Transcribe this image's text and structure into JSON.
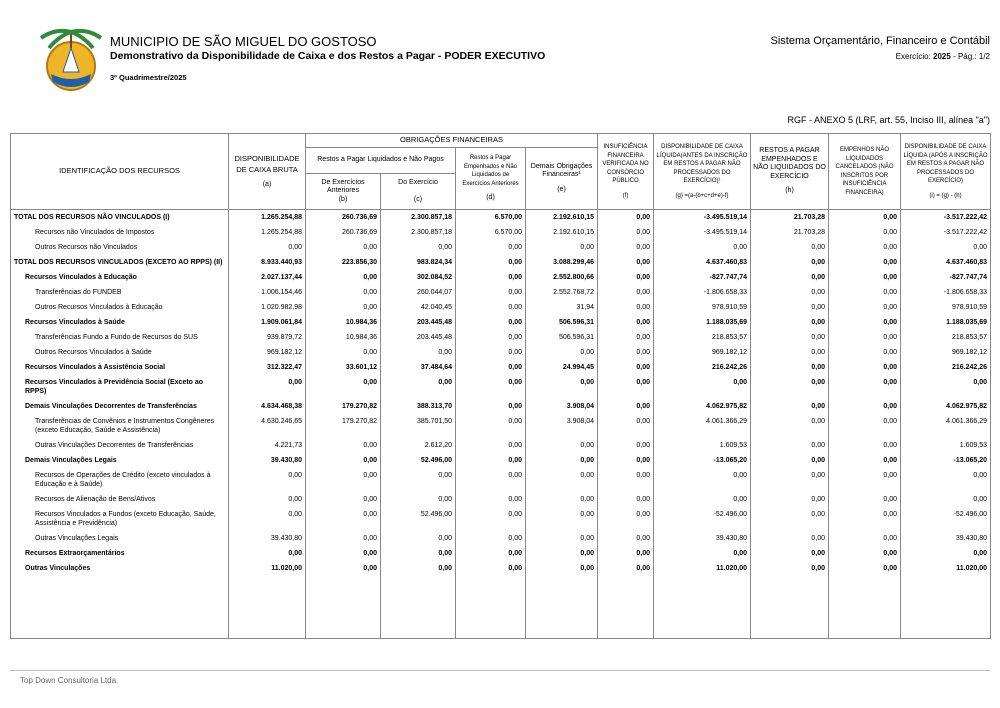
{
  "header": {
    "title": "MUNICIPIO DE SÃO MIGUEL DO GOSTOSO",
    "subtitle": "Demonstrativo da Disponibilidade de Caixa e dos Restos a Pagar - PODER EXECUTIVO",
    "period": "3º Quadrimestre/2025",
    "system": "Sistema Orçamentário, Financeiro e Contábil",
    "exercise_label": "Exercício:",
    "exercise_year": "2025",
    "page_label": "- Pág.:",
    "page": "1/2"
  },
  "annex": "RGF - ANEXO 5 (LRF, art. 55, Inciso III, alínea \"a\")",
  "table": {
    "head": {
      "ident": "IDENTIFICAÇÃO DOS RECURSOS",
      "a": "DISPONIBILIDADE DE CAIXA BRUTA",
      "a_code": "(a)",
      "obrig": "OBRIGAÇÕES FINANCEIRAS",
      "rp_liq": "Restos a Pagar Liquidados e Não Pagos",
      "b": "De Exercícios Anteriores",
      "b_code": "(b)",
      "c": "Do Exercício",
      "c_code": "(c)",
      "d": "Restos a Pagar Empenhados e Não Liquidados de Exercícios Anteriores",
      "d_code": "(d)",
      "e": "Demais Obrigações Financeiras¹",
      "e_code": "(e)",
      "f": "INSUFICIÊNCIA FINANCEIRA VERIFICADA NO CONSÓRCIO PÚBLICO",
      "f_code": "(f)",
      "g": "DISPONIBILIDADE DE CAIXA LÍQUIDA(ANTES DA INSCRIÇÃO EM RESTOS A PAGAR NÃO PROCESSADOS DO EXERCÍCIO)¹",
      "g_code": "(g) =(a-(b+c+d+e)-f)",
      "h": "RESTOS A PAGAR EMPENHADOS E NÃO LIQUIDADOS DO EXERCÍCIO",
      "h_code": "(h)",
      "canc": "EMPENHOS NÃO LIQUIDADOS CANCELADOS (NÃO INSCRITOS POR INSUFICIÊNCIA FINANCEIRA)",
      "i": "DISPONIBILIDADE DE CAIXA LÍQUIDA (APÓS A INSCRIÇÃO EM RESTOS A PAGAR NÃO PROCESSADOS DO EXERCÍCIO)",
      "i_code": "(i) = (g) - (h)"
    },
    "rows": [
      {
        "label": "TOTAL DOS RECURSOS NÃO VINCULADOS (I)",
        "values": [
          "1.265.254,88",
          "260.736,69",
          "2.300.857,18",
          "6.570,00",
          "2.192.610,15",
          "0,00",
          "-3.495.519,14",
          "21.703,28",
          "0,00",
          "-3.517.222,42"
        ]
      },
      {
        "label": "Recursos não Vinculados de Impostos",
        "values": [
          "1.265.254,88",
          "260.736,69",
          "2.300.857,18",
          "6.570,00",
          "2.192.610,15",
          "0,00",
          "-3.495.519,14",
          "21.703,28",
          "0,00",
          "-3.517.222,42"
        ]
      },
      {
        "label": "Outros Recursos não Vinculados",
        "values": [
          "0,00",
          "0,00",
          "0,00",
          "0,00",
          "0,00",
          "0,00",
          "0,00",
          "0,00",
          "0,00",
          "0,00"
        ]
      },
      {
        "label": "TOTAL DOS RECURSOS VINCULADOS (EXCETO AO RPPS) (II)",
        "values": [
          "8.933.440,93",
          "223.856,30",
          "983.824,34",
          "0,00",
          "3.088.299,46",
          "0,00",
          "4.637.460,83",
          "0,00",
          "0,00",
          "4.637.460,83"
        ]
      },
      {
        "label": "Recursos Vinculados à Educação",
        "values": [
          "2.027.137,44",
          "0,00",
          "302.084,52",
          "0,00",
          "2.552.800,66",
          "0,00",
          "-827.747,74",
          "0,00",
          "0,00",
          "-827.747,74"
        ]
      },
      {
        "label": "Transferências do FUNDEB",
        "values": [
          "1.006.154,46",
          "0,00",
          "260.044,07",
          "0,00",
          "2.552.768,72",
          "0,00",
          "-1.806.658,33",
          "0,00",
          "0,00",
          "-1.806.658,33"
        ]
      },
      {
        "label": "Outros Recursos Vinculados à Educação",
        "values": [
          "1.020.982,98",
          "0,00",
          "42.040,45",
          "0,00",
          "31,94",
          "0,00",
          "978.910,59",
          "0,00",
          "0,00",
          "978.910,59"
        ]
      },
      {
        "label": "Recursos Vinculados à Saúde",
        "values": [
          "1.909.061,84",
          "10.984,36",
          "203.445,48",
          "0,00",
          "506.596,31",
          "0,00",
          "1.188.035,69",
          "0,00",
          "0,00",
          "1.188.035,69"
        ]
      },
      {
        "label": "Transferências Fundo a Fundo de Recursos do SUS",
        "values": [
          "939.879,72",
          "10.984,36",
          "203.445,48",
          "0,00",
          "506.596,31",
          "0,00",
          "218.853,57",
          "0,00",
          "0,00",
          "218.853,57"
        ]
      },
      {
        "label": "Outros Recursos Vinculados à Saúde",
        "values": [
          "969.182,12",
          "0,00",
          "0,00",
          "0,00",
          "0,00",
          "0,00",
          "969.182,12",
          "0,00",
          "0,00",
          "969.182,12"
        ]
      },
      {
        "label": "Recursos Vinculados à Assistência Social",
        "values": [
          "312.322,47",
          "33.601,12",
          "37.484,64",
          "0,00",
          "24.994,45",
          "0,00",
          "216.242,26",
          "0,00",
          "0,00",
          "216.242,26"
        ]
      },
      {
        "label": "Recursos Vinculados à Previdência Social (Exceto ao RPPS)",
        "values": [
          "0,00",
          "0,00",
          "0,00",
          "0,00",
          "0,00",
          "0,00",
          "0,00",
          "0,00",
          "0,00",
          "0,00"
        ]
      },
      {
        "label": "Demais Vinculações Decorrentes de Transferências",
        "values": [
          "4.634.468,38",
          "179.270,82",
          "388.313,70",
          "0,00",
          "3.908,04",
          "0,00",
          "4.062.975,82",
          "0,00",
          "0,00",
          "4.062.975,82"
        ]
      },
      {
        "label": "Transferências de Convênios e Instrumentos Congêneres (exceto Educação, Saúde e Assistência)",
        "values": [
          "4.630.246,65",
          "179.270,82",
          "385.701,50",
          "0,00",
          "3.908,04",
          "0,00",
          "4.061.366,29",
          "0,00",
          "0,00",
          "4.061.366,29"
        ]
      },
      {
        "label": "Outras Vinculações Decorrentes de Transferências",
        "values": [
          "4.221,73",
          "0,00",
          "2.612,20",
          "0,00",
          "0,00",
          "0,00",
          "1.609,53",
          "0,00",
          "0,00",
          "1.609,53"
        ]
      },
      {
        "label": "Demais Vinculações Legais",
        "values": [
          "39.430,80",
          "0,00",
          "52.496,00",
          "0,00",
          "0,00",
          "0,00",
          "-13.065,20",
          "0,00",
          "0,00",
          "-13.065,20"
        ]
      },
      {
        "label": "Recursos de Operações de Crédito (exceto vinculados à Educação e à Saúde)",
        "values": [
          "0,00",
          "0,00",
          "0,00",
          "0,00",
          "0,00",
          "0,00",
          "0,00",
          "0,00",
          "0,00",
          "0,00"
        ]
      },
      {
        "label": "Recursos de Alienação de Bens/Ativos",
        "values": [
          "0,00",
          "0,00",
          "0,00",
          "0,00",
          "0,00",
          "0,00",
          "0,00",
          "0,00",
          "0,00",
          "0,00"
        ]
      },
      {
        "label": "Recursos Vinculados a Fundos (exceto Educação, Saúde, Assistência e Previdência)",
        "values": [
          "0,00",
          "0,00",
          "52.496,00",
          "0,00",
          "0,00",
          "0,00",
          "-52.496,00",
          "0,00",
          "0,00",
          "-52.496,00"
        ]
      },
      {
        "label": "Outras Vinculações Legais",
        "values": [
          "39.430,80",
          "0,00",
          "0,00",
          "0,00",
          "0,00",
          "0,00",
          "39.430,80",
          "0,00",
          "0,00",
          "39.430,80"
        ]
      },
      {
        "label": "Recursos Extraorçamentários",
        "values": [
          "0,00",
          "0,00",
          "0,00",
          "0,00",
          "0,00",
          "0,00",
          "0,00",
          "0,00",
          "0,00",
          "0,00"
        ]
      },
      {
        "label": "Outras Vinculações",
        "values": [
          "11.020,00",
          "0,00",
          "0,00",
          "0,00",
          "0,00",
          "0,00",
          "11.020,00",
          "0,00",
          "0,00",
          "11.020,00"
        ]
      }
    ]
  },
  "footer": "Top Down Consultoria Ltda."
}
